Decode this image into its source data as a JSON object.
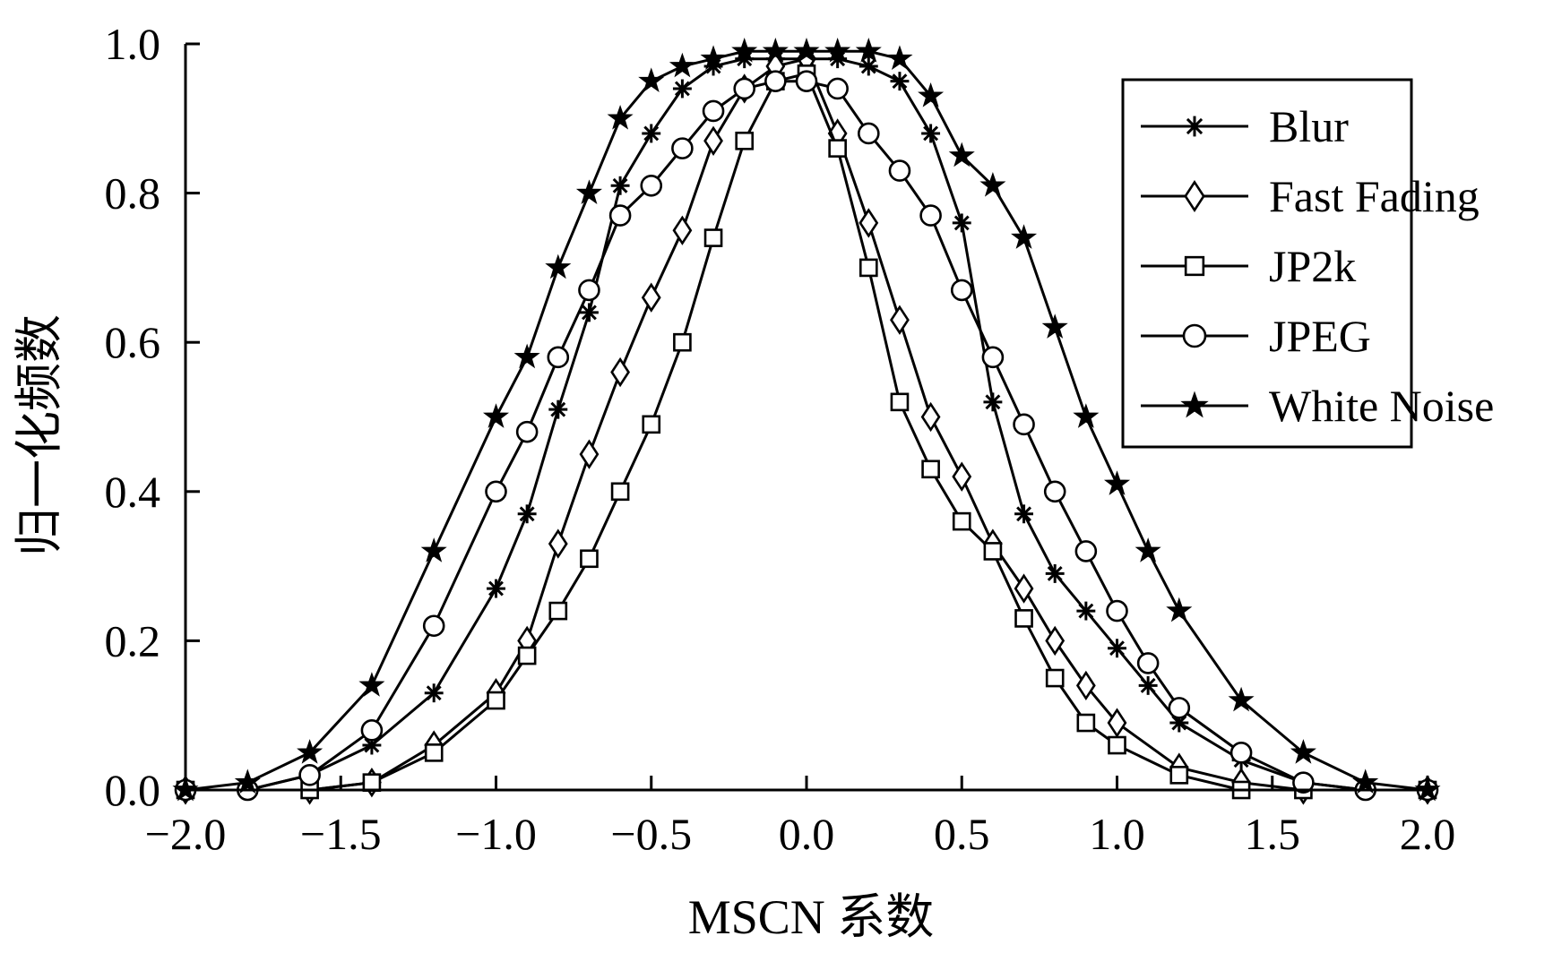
{
  "chart_data": {
    "type": "line",
    "title": "",
    "xlabel": "MSCN 系数",
    "ylabel": "归一化频数",
    "xlim": [
      -2.0,
      2.0
    ],
    "ylim": [
      0.0,
      1.0
    ],
    "x_ticks": [
      "−2.0",
      "−1.5",
      "−1.0",
      "−0.5",
      "0.0",
      "0.5",
      "1.0",
      "1.5",
      "2.0"
    ],
    "y_ticks": [
      "0.0",
      "0.2",
      "0.4",
      "0.6",
      "0.8",
      "1.0"
    ],
    "grid": false,
    "legend_position": "top-right",
    "color": "#000000",
    "series": [
      {
        "name": "Blur",
        "marker": "asterisk",
        "peak_x": -0.02,
        "sigma_left": 0.42,
        "sigma_right": 0.4,
        "x": [
          -2.0,
          -1.8,
          -1.6,
          -1.4,
          -1.2,
          -1.0,
          -0.9,
          -0.8,
          -0.7,
          -0.6,
          -0.5,
          -0.4,
          -0.3,
          -0.2,
          -0.1,
          0.0,
          0.1,
          0.2,
          0.3,
          0.4,
          0.5,
          0.6,
          0.7,
          0.8,
          0.9,
          1.0,
          1.1,
          1.2,
          1.4,
          1.6,
          1.8,
          2.0
        ],
        "y": [
          0.0,
          0.0,
          0.02,
          0.06,
          0.13,
          0.27,
          0.37,
          0.51,
          0.64,
          0.81,
          0.88,
          0.94,
          0.97,
          0.98,
          0.98,
          0.98,
          0.98,
          0.97,
          0.95,
          0.88,
          0.76,
          0.52,
          0.37,
          0.29,
          0.24,
          0.19,
          0.14,
          0.09,
          0.04,
          0.01,
          0.0,
          0.0
        ]
      },
      {
        "name": "Fast Fading",
        "marker": "diamond",
        "peak_x": -0.05,
        "sigma_left": 0.3,
        "sigma_right": 0.28,
        "x": [
          -2.0,
          -1.6,
          -1.4,
          -1.2,
          -1.0,
          -0.9,
          -0.8,
          -0.7,
          -0.6,
          -0.5,
          -0.4,
          -0.3,
          -0.2,
          -0.1,
          0.0,
          0.1,
          0.2,
          0.3,
          0.4,
          0.5,
          0.6,
          0.7,
          0.8,
          0.9,
          1.0,
          1.2,
          1.4,
          1.6,
          2.0
        ],
        "y": [
          0.0,
          0.0,
          0.01,
          0.06,
          0.13,
          0.2,
          0.33,
          0.45,
          0.56,
          0.66,
          0.75,
          0.87,
          0.94,
          0.97,
          0.98,
          0.88,
          0.76,
          0.63,
          0.5,
          0.42,
          0.33,
          0.27,
          0.2,
          0.14,
          0.09,
          0.03,
          0.01,
          0.0,
          0.0
        ]
      },
      {
        "name": "JP2k",
        "marker": "square",
        "peak_x": -0.05,
        "sigma_left": 0.27,
        "sigma_right": 0.26,
        "x": [
          -2.0,
          -1.6,
          -1.4,
          -1.2,
          -1.0,
          -0.9,
          -0.8,
          -0.7,
          -0.6,
          -0.5,
          -0.4,
          -0.3,
          -0.2,
          -0.1,
          0.0,
          0.1,
          0.2,
          0.3,
          0.4,
          0.5,
          0.6,
          0.7,
          0.8,
          0.9,
          1.0,
          1.2,
          1.4,
          1.6,
          2.0
        ],
        "y": [
          0.0,
          0.0,
          0.01,
          0.05,
          0.12,
          0.18,
          0.24,
          0.31,
          0.4,
          0.49,
          0.6,
          0.74,
          0.87,
          0.95,
          0.96,
          0.86,
          0.7,
          0.52,
          0.43,
          0.36,
          0.32,
          0.23,
          0.15,
          0.09,
          0.06,
          0.02,
          0.0,
          0.0,
          0.0
        ]
      },
      {
        "name": "JPEG",
        "marker": "circle",
        "peak_x": -0.03,
        "sigma_left": 0.38,
        "sigma_right": 0.36,
        "x": [
          -2.0,
          -1.8,
          -1.6,
          -1.4,
          -1.2,
          -1.0,
          -0.9,
          -0.8,
          -0.7,
          -0.6,
          -0.5,
          -0.4,
          -0.3,
          -0.2,
          -0.1,
          0.0,
          0.1,
          0.2,
          0.3,
          0.4,
          0.5,
          0.6,
          0.7,
          0.8,
          0.9,
          1.0,
          1.1,
          1.2,
          1.4,
          1.6,
          1.8,
          2.0
        ],
        "y": [
          0.0,
          0.0,
          0.02,
          0.08,
          0.22,
          0.4,
          0.48,
          0.58,
          0.67,
          0.77,
          0.81,
          0.86,
          0.91,
          0.94,
          0.95,
          0.95,
          0.94,
          0.88,
          0.83,
          0.77,
          0.67,
          0.58,
          0.49,
          0.4,
          0.32,
          0.24,
          0.17,
          0.11,
          0.05,
          0.01,
          0.0,
          0.0
        ]
      },
      {
        "name": "White Noise",
        "marker": "star",
        "peak_x": 0.03,
        "sigma_left": 0.5,
        "sigma_right": 0.48,
        "x": [
          -2.0,
          -1.8,
          -1.6,
          -1.4,
          -1.2,
          -1.0,
          -0.9,
          -0.8,
          -0.7,
          -0.6,
          -0.5,
          -0.4,
          -0.3,
          -0.2,
          -0.1,
          0.0,
          0.1,
          0.2,
          0.3,
          0.4,
          0.5,
          0.6,
          0.7,
          0.8,
          0.9,
          1.0,
          1.1,
          1.2,
          1.4,
          1.6,
          1.8,
          2.0
        ],
        "y": [
          0.0,
          0.01,
          0.05,
          0.14,
          0.32,
          0.5,
          0.58,
          0.7,
          0.8,
          0.9,
          0.95,
          0.97,
          0.98,
          0.99,
          0.99,
          0.99,
          0.99,
          0.99,
          0.98,
          0.93,
          0.85,
          0.81,
          0.74,
          0.62,
          0.5,
          0.41,
          0.32,
          0.24,
          0.12,
          0.05,
          0.01,
          0.0
        ]
      }
    ]
  }
}
